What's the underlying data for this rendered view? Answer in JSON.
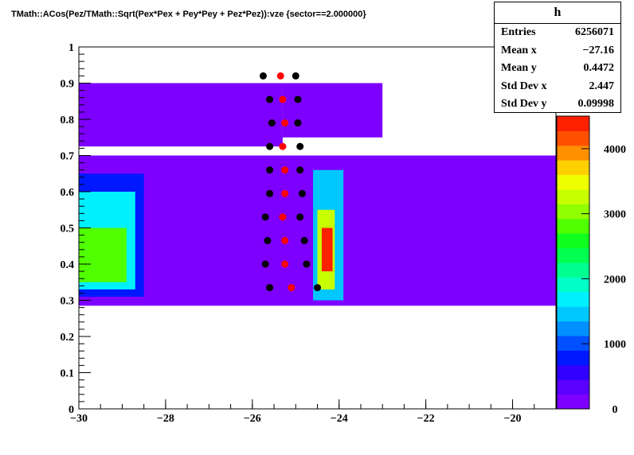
{
  "chart_data": {
    "type": "heatmap",
    "title": "TMath::ACos(Pez/TMath::Sqrt(Pex*Pex + Pey*Pey + Pez*Pez)):vze {sector==2.000000}",
    "xlim": [
      -30,
      -19
    ],
    "ylim": [
      0,
      1
    ],
    "x_ticks": [
      "−30",
      "−28",
      "−26",
      "−24",
      "−22",
      "−20"
    ],
    "x_tick_values": [
      -30,
      -28,
      -26,
      -24,
      -22,
      -20
    ],
    "y_ticks": [
      "0",
      "0.1",
      "0.2",
      "0.3",
      "0.4",
      "0.5",
      "0.6",
      "0.7",
      "0.8",
      "0.9",
      "1"
    ],
    "y_tick_values": [
      0,
      0.1,
      0.2,
      0.3,
      0.4,
      0.5,
      0.6,
      0.7,
      0.8,
      0.9,
      1.0
    ],
    "colorbar": {
      "zlim": [
        0,
        4500
      ],
      "ticks": [
        "0",
        "1000",
        "2000",
        "3000",
        "4000"
      ],
      "tick_values": [
        0,
        1000,
        2000,
        3000,
        4000
      ],
      "colors": [
        "#7d00ff",
        "#5a00ff",
        "#3000ff",
        "#0018ff",
        "#0050ff",
        "#0090ff",
        "#00c8ff",
        "#00f0ff",
        "#00ffc8",
        "#00ff90",
        "#00ff50",
        "#10ff20",
        "#50ff00",
        "#90ff00",
        "#c8ff00",
        "#f0ff00",
        "#ffd000",
        "#ff9000",
        "#ff5000",
        "#ff2000"
      ]
    },
    "regions": [
      {
        "x0": -30.0,
        "x1": -19.0,
        "y0": 0.285,
        "y1": 0.7,
        "z": 150
      },
      {
        "x0": -30.0,
        "x1": -25.3,
        "y0": 0.725,
        "y1": 0.9,
        "z": 150
      },
      {
        "x0": -25.3,
        "x1": -23.0,
        "y0": 0.75,
        "y1": 0.9,
        "z": 150
      },
      {
        "x0": -30.0,
        "x1": -28.5,
        "y0": 0.31,
        "y1": 0.65,
        "z": 800
      },
      {
        "x0": -30.0,
        "x1": -28.7,
        "y0": 0.33,
        "y1": 0.6,
        "z": 1600
      },
      {
        "x0": -30.0,
        "x1": -28.9,
        "y0": 0.35,
        "y1": 0.5,
        "z": 2900
      },
      {
        "x0": -24.6,
        "x1": -23.9,
        "y0": 0.3,
        "y1": 0.66,
        "z": 1500
      },
      {
        "x0": -24.5,
        "x1": -24.1,
        "y0": 0.33,
        "y1": 0.55,
        "z": 3200
      },
      {
        "x0": -24.4,
        "x1": -24.15,
        "y0": 0.38,
        "y1": 0.5,
        "z": 4400
      }
    ],
    "black_points": [
      [
        -25.75,
        0.92
      ],
      [
        -25.0,
        0.92
      ],
      [
        -25.6,
        0.855
      ],
      [
        -24.95,
        0.855
      ],
      [
        -25.55,
        0.79
      ],
      [
        -24.95,
        0.79
      ],
      [
        -25.6,
        0.725
      ],
      [
        -24.9,
        0.725
      ],
      [
        -25.6,
        0.66
      ],
      [
        -24.9,
        0.66
      ],
      [
        -25.6,
        0.595
      ],
      [
        -24.85,
        0.595
      ],
      [
        -25.7,
        0.53
      ],
      [
        -24.9,
        0.53
      ],
      [
        -25.65,
        0.465
      ],
      [
        -24.8,
        0.465
      ],
      [
        -25.7,
        0.4
      ],
      [
        -24.75,
        0.4
      ],
      [
        -25.6,
        0.335
      ],
      [
        -24.5,
        0.335
      ]
    ],
    "red_points": [
      [
        -25.35,
        0.92
      ],
      [
        -25.3,
        0.855
      ],
      [
        -25.25,
        0.79
      ],
      [
        -25.3,
        0.725
      ],
      [
        -25.25,
        0.66
      ],
      [
        -25.25,
        0.595
      ],
      [
        -25.3,
        0.53
      ],
      [
        -25.25,
        0.465
      ],
      [
        -25.25,
        0.4
      ],
      [
        -25.1,
        0.335
      ]
    ]
  },
  "stats": {
    "name": "h",
    "rows": [
      {
        "label": "Entries",
        "value": "6256071"
      },
      {
        "label": "Mean x",
        "value": "−27.16"
      },
      {
        "label": "Mean y",
        "value": "0.4472"
      },
      {
        "label": "Std Dev x",
        "value": "2.447"
      },
      {
        "label": "Std Dev y",
        "value": "0.09998"
      }
    ]
  }
}
